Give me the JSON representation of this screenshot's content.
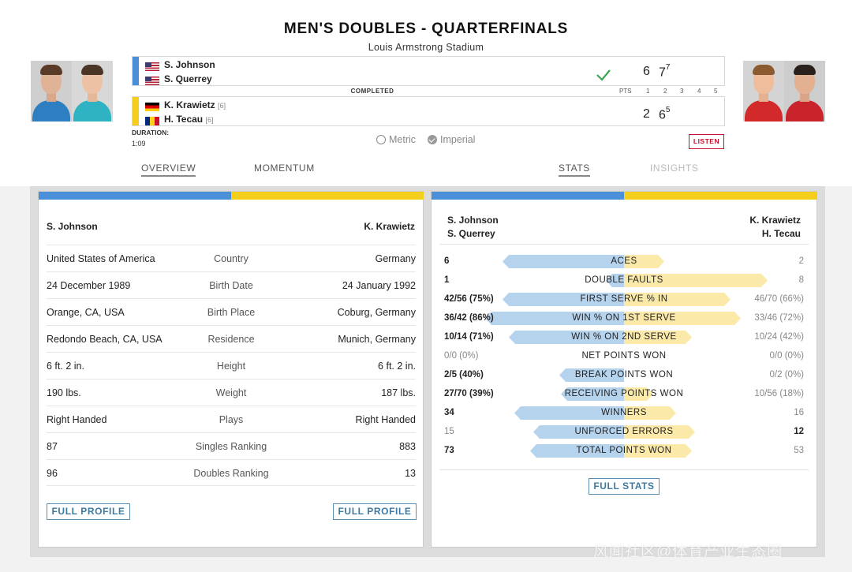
{
  "header": {
    "title": "MEN'S DOUBLES - QUARTERFINALS",
    "venue": "Louis Armstrong Stadium"
  },
  "colors": {
    "team1": "#4a90d9",
    "team2": "#f4ce1d",
    "listen": "#c4122f",
    "button": "#3d7aa0"
  },
  "scoreboard": {
    "team1": {
      "players": [
        {
          "name": "S. Johnson",
          "flag": "us-flag",
          "seed": ""
        },
        {
          "name": "S. Querrey",
          "flag": "us-flag",
          "seed": ""
        }
      ],
      "sets": [
        {
          "score": "6",
          "tiebreak": ""
        },
        {
          "score": "7",
          "tiebreak": "7"
        }
      ],
      "winner": true
    },
    "team2": {
      "players": [
        {
          "name": "K. Krawietz",
          "flag": "de-flag",
          "seed": "[6]"
        },
        {
          "name": "H. Tecau",
          "flag": "ro-flag",
          "seed": "[6]"
        }
      ],
      "sets": [
        {
          "score": "2",
          "tiebreak": ""
        },
        {
          "score": "6",
          "tiebreak": "5"
        }
      ]
    },
    "status": "COMPLETED",
    "columns": [
      "PTS",
      "1",
      "2",
      "3",
      "4",
      "5"
    ],
    "duration_label": "DURATION:",
    "duration": "1:09"
  },
  "units": {
    "metric": "Metric",
    "imperial": "Imperial",
    "selected": "Imperial"
  },
  "listen_label": "LISTEN",
  "tabs": {
    "left": [
      {
        "label": "OVERVIEW",
        "active": true
      },
      {
        "label": "MOMENTUM",
        "active": false
      }
    ],
    "right": [
      {
        "label": "STATS",
        "active": true
      },
      {
        "label": "INSIGHTS",
        "active": false
      }
    ]
  },
  "profile": {
    "left_player": "S. Johnson",
    "right_player": "K. Krawietz",
    "rows": [
      {
        "label": "Country",
        "left": "United States of America",
        "right": "Germany"
      },
      {
        "label": "Birth Date",
        "left": "24 December 1989",
        "right": "24 January 1992"
      },
      {
        "label": "Birth Place",
        "left": "Orange, CA, USA",
        "right": "Coburg, Germany"
      },
      {
        "label": "Residence",
        "left": "Redondo Beach, CA, USA",
        "right": "Munich, Germany"
      },
      {
        "label": "Height",
        "left": "6 ft. 2 in.",
        "right": "6 ft. 2 in."
      },
      {
        "label": "Weight",
        "left": "190 lbs.",
        "right": "187 lbs."
      },
      {
        "label": "Plays",
        "left": "Right Handed",
        "right": "Right Handed"
      },
      {
        "label": "Singles Ranking",
        "left": "87",
        "right": "883"
      },
      {
        "label": "Doubles Ranking",
        "left": "96",
        "right": "13"
      }
    ],
    "full_profile_label": "FULL PROFILE"
  },
  "stats": {
    "team1_names": [
      "S. Johnson",
      "S. Querrey"
    ],
    "team2_names": [
      "K. Krawietz",
      "H. Tecau"
    ],
    "rows": [
      {
        "label": "ACES",
        "left": "6",
        "right": "2",
        "left_ratio": 0.75,
        "right_ratio": 0.25,
        "leader": "left"
      },
      {
        "label": "DOUBLE FAULTS",
        "left": "1",
        "right": "8",
        "left_ratio": 0.11,
        "right_ratio": 0.89,
        "leader": "left"
      },
      {
        "label": "FIRST SERVE % IN",
        "left": "42/56 (75%)",
        "right": "46/70 (66%)",
        "left_ratio": 0.75,
        "right_ratio": 0.66,
        "leader": "left"
      },
      {
        "label": "WIN % ON 1ST SERVE",
        "left": "36/42 (86%)",
        "right": "33/46 (72%)",
        "left_ratio": 0.86,
        "right_ratio": 0.72,
        "leader": "left"
      },
      {
        "label": "WIN % ON 2ND SERVE",
        "left": "10/14 (71%)",
        "right": "10/24 (42%)",
        "left_ratio": 0.71,
        "right_ratio": 0.42,
        "leader": "left"
      },
      {
        "label": "NET POINTS WON",
        "left": "0/0 (0%)",
        "right": "0/0 (0%)",
        "left_ratio": 0,
        "right_ratio": 0,
        "leader": "none"
      },
      {
        "label": "BREAK POINTS WON",
        "left": "2/5 (40%)",
        "right": "0/2 (0%)",
        "left_ratio": 0.4,
        "right_ratio": 0,
        "leader": "left"
      },
      {
        "label": "RECEIVING POINTS WON",
        "left": "27/70 (39%)",
        "right": "10/56 (18%)",
        "left_ratio": 0.39,
        "right_ratio": 0.18,
        "leader": "left"
      },
      {
        "label": "WINNERS",
        "left": "34",
        "right": "16",
        "left_ratio": 0.68,
        "right_ratio": 0.32,
        "leader": "left"
      },
      {
        "label": "UNFORCED ERRORS",
        "left": "15",
        "right": "12",
        "left_ratio": 0.56,
        "right_ratio": 0.44,
        "leader": "right"
      },
      {
        "label": "TOTAL POINTS WON",
        "left": "73",
        "right": "53",
        "left_ratio": 0.58,
        "right_ratio": 0.42,
        "leader": "left"
      }
    ],
    "full_stats_label": "FULL STATS"
  },
  "watermark": "风闻社区@体育产业生态圈"
}
